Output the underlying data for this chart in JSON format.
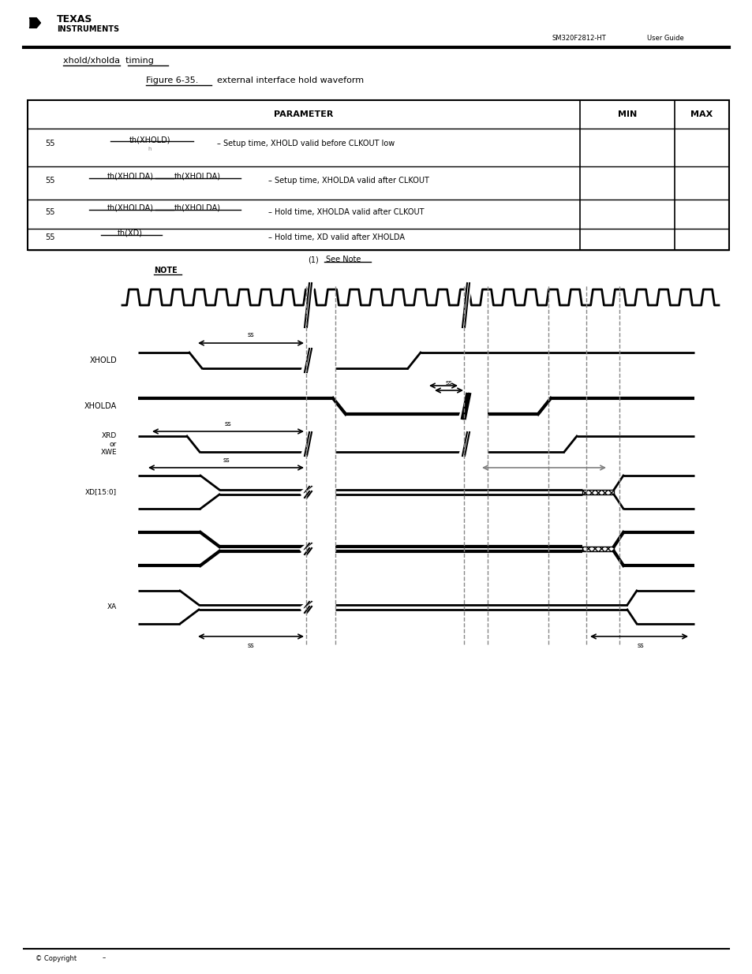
{
  "bg_color": "#ffffff",
  "line_color": "#000000",
  "title": "xhold/xholda timing",
  "figure_label": "Figure 6-35. external interface hold waveform",
  "page_info": "SM320F2812-HT",
  "sig_labels": [
    "XHOLD",
    "XHOLDA",
    "XRD\nor\nXWE",
    "XD[15:0]\nor\nXA"
  ],
  "clk_period": 28,
  "clk_amp": 20
}
